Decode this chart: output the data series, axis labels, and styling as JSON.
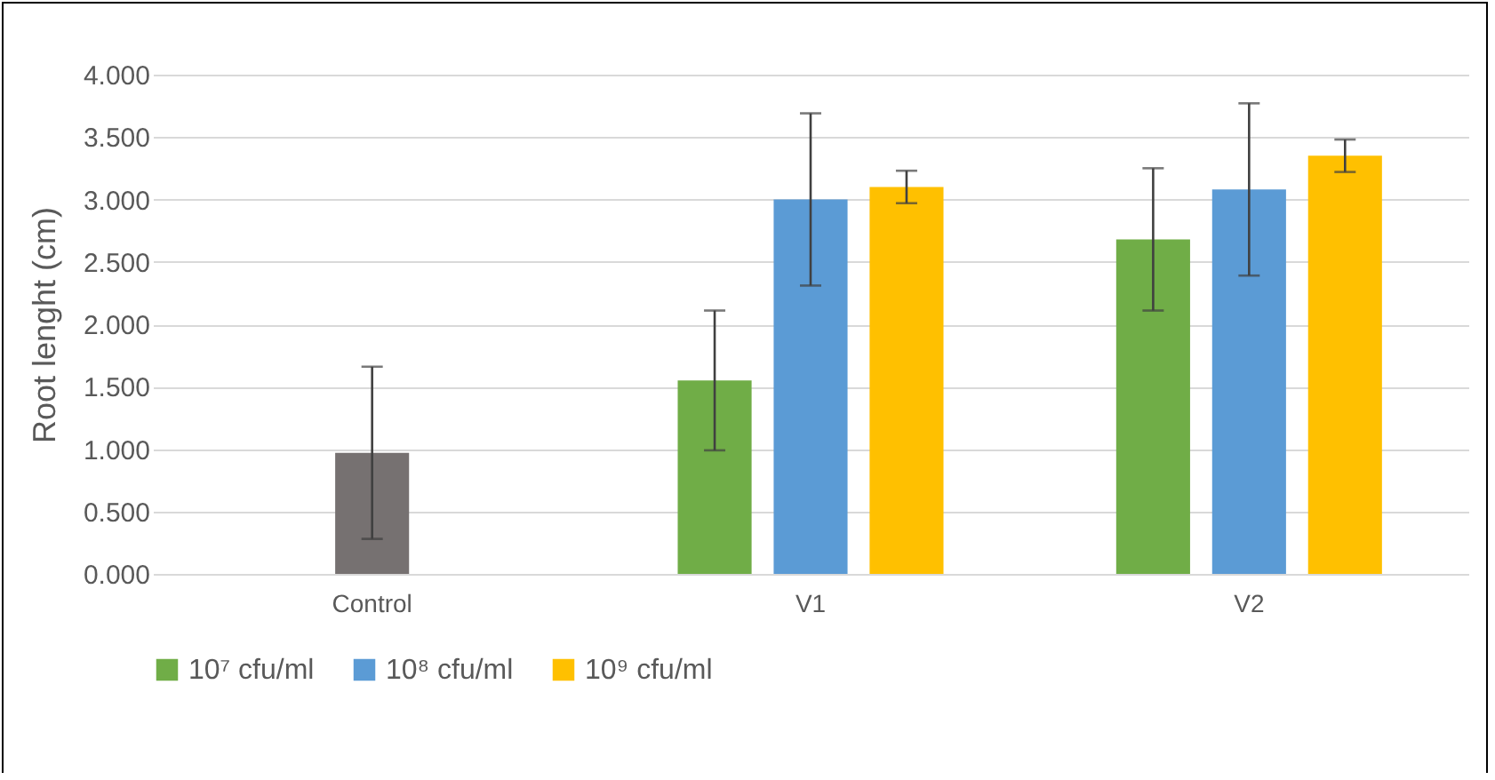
{
  "chart_data": {
    "type": "bar",
    "ylabel": "Root lenght (cm)",
    "categories": [
      "Control",
      "V1",
      "V2"
    ],
    "series": [
      {
        "color": "#767171",
        "values": [
          0.97,
          null,
          null
        ],
        "errors": [
          0.69,
          null,
          null
        ]
      },
      {
        "name": "10⁷ cfu/ml",
        "color": "#70ad47",
        "values": [
          null,
          1.55,
          2.68
        ],
        "errors": [
          null,
          0.56,
          0.57
        ]
      },
      {
        "name": "10⁸ cfu/ml",
        "color": "#5b9bd5",
        "values": [
          null,
          3.0,
          3.08
        ],
        "errors": [
          null,
          0.69,
          0.69
        ]
      },
      {
        "name": "10⁹ cfu/ml",
        "color": "#ffc000",
        "values": [
          null,
          3.1,
          3.35
        ],
        "errors": [
          null,
          0.13,
          0.13
        ]
      }
    ],
    "ylim": [
      0,
      4
    ],
    "yticks": [
      {
        "value": 0,
        "label": "0.000"
      },
      {
        "value": 0.5,
        "label": "0.500"
      },
      {
        "value": 1,
        "label": "1.000"
      },
      {
        "value": 1.5,
        "label": "1.500"
      },
      {
        "value": 2,
        "label": "2.000"
      },
      {
        "value": 2.5,
        "label": "2.500"
      },
      {
        "value": 3,
        "label": "3.000"
      },
      {
        "value": 3.5,
        "label": "3.500"
      },
      {
        "value": 4,
        "label": "4.000"
      }
    ],
    "grid": "y",
    "legend": "bottom"
  }
}
